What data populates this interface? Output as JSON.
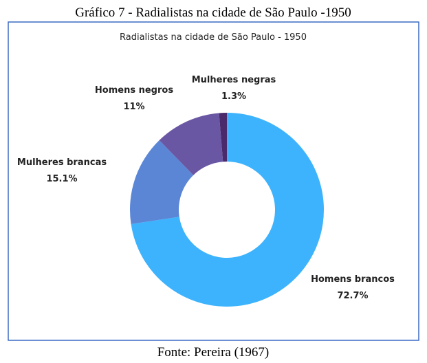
{
  "caption": "Gráfico 7 - Radialistas na cidade de São Paulo -1950",
  "source": "Fonte: Pereira (1967)",
  "chart_data": {
    "type": "donut",
    "title": "Radialistas na cidade de São Paulo - 1950",
    "categories": [
      "Homens brancos",
      "Mulheres brancas",
      "Homens negros",
      "Mulheres negras"
    ],
    "values": [
      72.7,
      15.1,
      11,
      1.3
    ],
    "value_labels": [
      "72.7%",
      "15.1%",
      "11%",
      "1.3%"
    ],
    "colors": [
      "#3db3fd",
      "#5b86d6",
      "#6a57a3",
      "#4a2a6b"
    ]
  }
}
